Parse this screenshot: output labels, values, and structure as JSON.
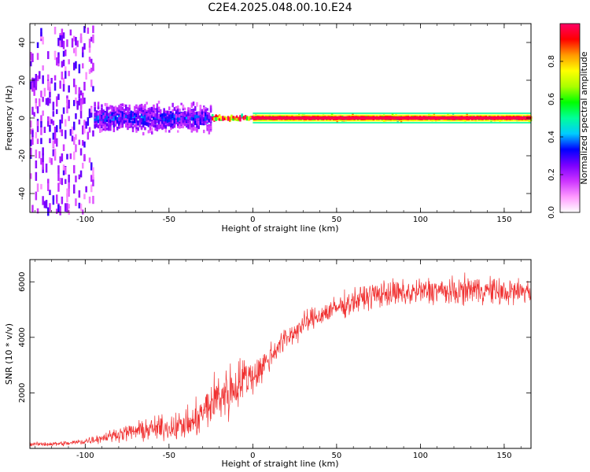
{
  "title": "C2E4.2025.048.00.10.E24",
  "colors": {
    "snr_line": "#f03030",
    "axis": "#000000"
  },
  "chart_data": [
    {
      "type": "heatmap",
      "title": "C2E4.2025.048.00.10.E24",
      "xlabel": "Height of straight line (km)",
      "ylabel": "Frequency (Hz)",
      "xlim": [
        -133,
        166
      ],
      "ylim": [
        -50,
        50
      ],
      "xticks": [
        -100,
        -50,
        0,
        50,
        100,
        150
      ],
      "xtick_labels": [
        "-100",
        "-50",
        "0",
        "50",
        "100",
        "150"
      ],
      "yticks": [
        -40,
        -20,
        0,
        20,
        40
      ],
      "ytick_labels": [
        "-40",
        "-20",
        "0",
        "20",
        "40"
      ],
      "colorbar": {
        "label": "Normalized spectral amplitude",
        "range": [
          0,
          1
        ],
        "ticks": [
          0.0,
          0.2,
          0.4,
          0.6,
          0.8
        ],
        "tick_labels": [
          "0.0",
          "0.2",
          "0.4",
          "0.6",
          "0.8"
        ],
        "colormap": [
          "#ffffff",
          "#ff99ff",
          "#cc33ff",
          "#7a00ff",
          "#0000ff",
          "#00ccff",
          "#00ff99",
          "#00ff00",
          "#aaff00",
          "#ffff00",
          "#ff9900",
          "#ff0000",
          "#ff0066"
        ]
      },
      "bands": [
        {
          "x": [
            -133,
            -95
          ],
          "freq_spread_hz": 50,
          "amplitude": 0.18
        },
        {
          "x": [
            -95,
            -25
          ],
          "freq_spread_hz": 9,
          "amplitude": 0.3
        },
        {
          "x": [
            -25,
            166
          ],
          "freq_spread_hz": 1.5,
          "amplitude": 0.95
        }
      ]
    },
    {
      "type": "line",
      "xlabel": "Height of straight line (km)",
      "ylabel": "SNR (10 * v/v)",
      "xlim": [
        -133,
        166
      ],
      "ylim": [
        0,
        6800
      ],
      "xticks": [
        -100,
        -50,
        0,
        50,
        100,
        150
      ],
      "xtick_labels": [
        "-100",
        "-50",
        "0",
        "50",
        "100",
        "150"
      ],
      "yticks": [
        2000,
        4000,
        6000
      ],
      "ytick_labels": [
        "2000",
        "4000",
        "6000"
      ],
      "series": [
        {
          "x": [
            -133,
            -120,
            -110,
            -100,
            -90,
            -80,
            -70,
            -60,
            -50,
            -40,
            -35,
            -30,
            -25,
            -20,
            -15,
            -10,
            -5,
            0,
            5,
            10,
            15,
            20,
            25,
            30,
            35,
            40,
            50,
            60,
            70,
            80,
            90,
            100,
            110,
            120,
            130,
            140,
            150,
            160,
            166
          ],
          "y": [
            150,
            160,
            180,
            260,
            380,
            520,
            620,
            700,
            760,
            850,
            950,
            1250,
            1600,
            1900,
            2000,
            2250,
            2550,
            2600,
            2900,
            3250,
            3700,
            3950,
            4200,
            4450,
            4650,
            4800,
            5050,
            5300,
            5500,
            5600,
            5550,
            5650,
            5700,
            5600,
            5750,
            5700,
            5600,
            5650,
            5700
          ],
          "noise": [
            60,
            70,
            80,
            110,
            150,
            200,
            280,
            350,
            380,
            450,
            520,
            600,
            750,
            850,
            900,
            800,
            650,
            550,
            500,
            450,
            400,
            380,
            370,
            360,
            350,
            350,
            360,
            380,
            400,
            420,
            420,
            420,
            420,
            420,
            420,
            420,
            420,
            420,
            420
          ]
        }
      ]
    }
  ]
}
